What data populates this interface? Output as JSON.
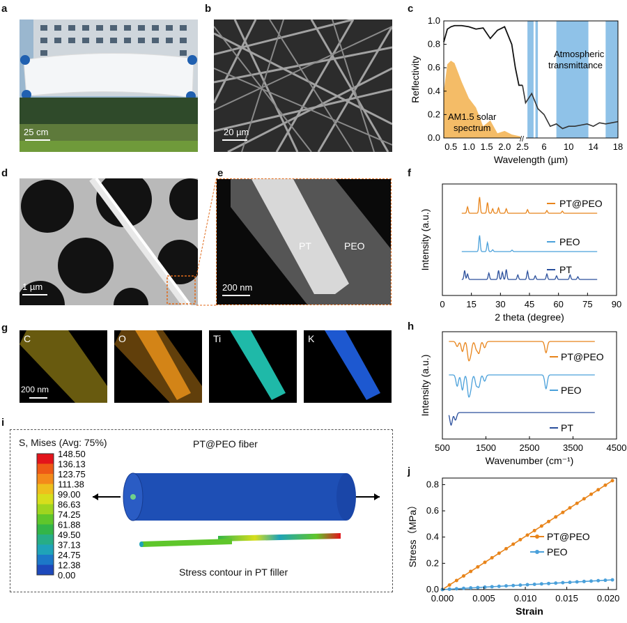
{
  "panels": {
    "a": {
      "label": "a",
      "scale": "25 cm"
    },
    "b": {
      "label": "b",
      "scale": "20 µm"
    },
    "c": {
      "label": "c"
    },
    "d": {
      "label": "d",
      "scale": "1 µm"
    },
    "e": {
      "label": "e",
      "scale": "200 nm",
      "text_pt": "PT",
      "text_peo": "PEO"
    },
    "f": {
      "label": "f"
    },
    "g": {
      "label": "g",
      "scale": "200 nm",
      "maps": [
        "C",
        "O",
        "Ti",
        "K"
      ]
    },
    "h": {
      "label": "h"
    },
    "i": {
      "label": "i",
      "legend_title": "S, Mises (Avg: 75%)",
      "fiber_title": "PT@PEO fiber",
      "caption": "Stress contour in PT filler",
      "legend_values": [
        "148.50",
        "136.13",
        "123.75",
        "111.38",
        "99.00",
        "86.63",
        "74.25",
        "61.88",
        "49.50",
        "37.13",
        "24.75",
        "12.38",
        "0.00"
      ],
      "legend_colors": [
        "#e3141b",
        "#ee5a16",
        "#f48a1a",
        "#eebf1c",
        "#d7de1c",
        "#9fd51f",
        "#5fc62b",
        "#33b548",
        "#27ad86",
        "#1fa3b8",
        "#1c78c8",
        "#1d49bb",
        "#1a2ea8"
      ]
    },
    "j": {
      "label": "j"
    }
  },
  "chart_data": [
    {
      "panel": "c",
      "type": "area",
      "ylabel": "Reflectivity",
      "xlabel": "Wavelength (µm)",
      "ylim": [
        0,
        1.0
      ],
      "yticks": [
        "0.0",
        "0.2",
        "0.4",
        "0.6",
        "0.8",
        "1.0"
      ],
      "xticks_left": [
        "0.5",
        "1.0",
        "1.5",
        "2.0",
        "2.5"
      ],
      "xticks_right": [
        "2.5",
        "6",
        "10",
        "14",
        "18"
      ],
      "annotations": [
        "AM1.5 solar spectrum",
        "Atmospheric transmittance"
      ],
      "annotation_lines": [
        [
          "AM1.5 solar",
          "spectrum"
        ],
        [
          "Atmospheric",
          "transmittance"
        ]
      ],
      "colors": {
        "solar": "#f2b04c",
        "atmos": "#6aaee0",
        "reflect": "#111111"
      },
      "reflectivity_left": {
        "x": [
          0.3,
          0.4,
          0.5,
          0.6,
          0.8,
          1.0,
          1.2,
          1.4,
          1.6,
          1.8,
          2.0,
          2.2,
          2.3,
          2.4,
          2.5
        ],
        "y": [
          0.82,
          0.93,
          0.95,
          0.96,
          0.96,
          0.95,
          0.93,
          0.94,
          0.85,
          0.92,
          0.95,
          0.8,
          0.6,
          0.45,
          0.45
        ]
      },
      "reflectivity_right": {
        "x": [
          2.5,
          3,
          4,
          5,
          6,
          7,
          8,
          9,
          10,
          11,
          12,
          13,
          14,
          15,
          16,
          17,
          18
        ],
        "y": [
          0.45,
          0.3,
          0.38,
          0.25,
          0.2,
          0.1,
          0.12,
          0.08,
          0.1,
          0.1,
          0.11,
          0.12,
          0.1,
          0.13,
          0.12,
          0.13,
          0.14
        ]
      },
      "solar_spectrum": {
        "x": [
          0.3,
          0.4,
          0.5,
          0.6,
          0.8,
          1.0,
          1.2,
          1.4,
          1.6,
          1.8,
          2.0,
          2.2,
          2.5
        ],
        "y": [
          0.4,
          0.63,
          0.66,
          0.64,
          0.48,
          0.34,
          0.26,
          0.1,
          0.15,
          0.04,
          0.06,
          0.03,
          0.01
        ]
      }
    },
    {
      "panel": "f",
      "type": "line",
      "xlabel": "2 theta (degree)",
      "ylabel": "Intensity (a.u.)",
      "xlim": [
        0,
        90
      ],
      "xticks": [
        "0",
        "15",
        "30",
        "45",
        "60",
        "75",
        "90"
      ],
      "series": [
        {
          "name": "PT@PEO",
          "color": "#e8841a",
          "peaks": [
            [
              13,
              0.35
            ],
            [
              19.2,
              0.9
            ],
            [
              23.3,
              0.6
            ],
            [
              26,
              0.25
            ],
            [
              29,
              0.3
            ],
            [
              33,
              0.25
            ],
            [
              44,
              0.2
            ],
            [
              54,
              0.15
            ],
            [
              62,
              0.12
            ]
          ]
        },
        {
          "name": "PEO",
          "color": "#4aa0da",
          "peaks": [
            [
              19.2,
              0.9
            ],
            [
              23.3,
              0.5
            ],
            [
              26,
              0.1
            ],
            [
              36,
              0.08
            ]
          ]
        },
        {
          "name": "PT",
          "color": "#2a4f9c",
          "peaks": [
            [
              11.5,
              0.5
            ],
            [
              13,
              0.3
            ],
            [
              24,
              0.35
            ],
            [
              29,
              0.5
            ],
            [
              31,
              0.4
            ],
            [
              33,
              0.55
            ],
            [
              39,
              0.25
            ],
            [
              44,
              0.45
            ],
            [
              48,
              0.2
            ],
            [
              54,
              0.3
            ],
            [
              59,
              0.2
            ],
            [
              66,
              0.25
            ],
            [
              70,
              0.15
            ]
          ]
        }
      ]
    },
    {
      "panel": "h",
      "type": "line",
      "xlabel": "Wavenumber (cm⁻¹)",
      "ylabel": "Intensity (a.u.)",
      "xlim": [
        500,
        4500
      ],
      "xticks": [
        "500",
        "1500",
        "2500",
        "3500",
        "4500"
      ],
      "series": [
        {
          "name": "PT@PEO",
          "color": "#e8841a"
        },
        {
          "name": "PEO",
          "color": "#4aa0da"
        },
        {
          "name": "PT",
          "color": "#2a4f9c"
        }
      ]
    },
    {
      "panel": "j",
      "type": "scatter",
      "xlabel": "Strain",
      "ylabel": "Stress（MPa）",
      "xlim": [
        0,
        0.021
      ],
      "ylim": [
        0,
        0.85
      ],
      "xticks": [
        "0.000",
        "0.005",
        "0.010",
        "0.015",
        "0.020"
      ],
      "yticks": [
        "0.0",
        "0.2",
        "0.4",
        "0.6",
        "0.8"
      ],
      "series": [
        {
          "name": "PT@PEO",
          "color": "#e8841a",
          "slope": 40.5
        },
        {
          "name": "PEO",
          "color": "#4aa0da",
          "slope": 3.6
        }
      ]
    }
  ]
}
